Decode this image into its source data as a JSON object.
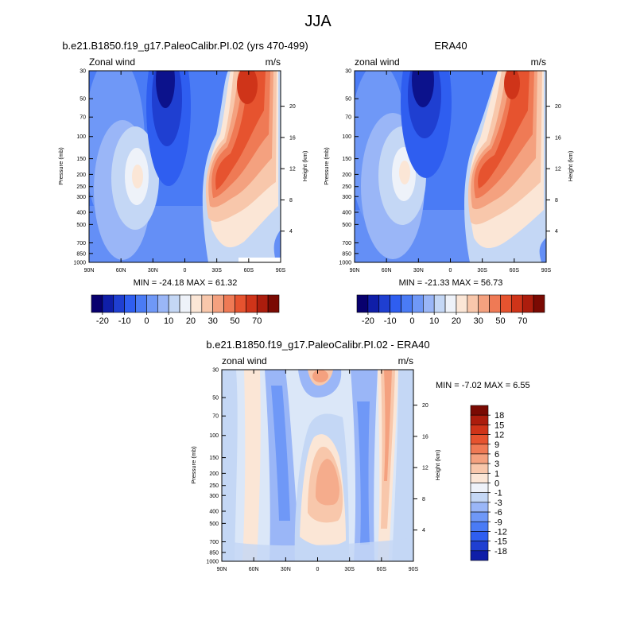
{
  "figure": {
    "title": "JJA"
  },
  "chart_data": [
    {
      "type": "heatmap",
      "title": "b.e21.B1850.f19_g17.PaleoCalibr.PI.02 (yrs 470-499)",
      "left_label": "Zonal wind",
      "units": "m/s",
      "ylabel": "Pressure (mb)",
      "ylabel_right": "Height (km)",
      "x_ticks": [
        "90N",
        "60N",
        "30N",
        "0",
        "30S",
        "60S",
        "90S"
      ],
      "x_tick_values": [
        90,
        60,
        30,
        0,
        -30,
        -60,
        -90
      ],
      "y_ticks": [
        "30",
        "50",
        "70",
        "100",
        "150",
        "200",
        "250",
        "300",
        "400",
        "500",
        "700",
        "850",
        "1000"
      ],
      "y_tick_values": [
        30,
        50,
        70,
        100,
        150,
        200,
        250,
        300,
        400,
        500,
        700,
        850,
        1000
      ],
      "height_ticks": [
        "20",
        "16",
        "12",
        "8",
        "4"
      ],
      "height_tick_values": [
        20,
        16,
        12,
        8,
        4
      ],
      "stats_text": "MIN = -24.18  MAX =  61.32",
      "min": -24.18,
      "max": 61.32
    },
    {
      "type": "heatmap",
      "title": "ERA40",
      "left_label": "zonal wind",
      "units": "m/s",
      "ylabel": "Pressure (mb)",
      "ylabel_right": "Height (km)",
      "x_ticks": [
        "90N",
        "60N",
        "30N",
        "0",
        "30S",
        "60S",
        "90S"
      ],
      "x_tick_values": [
        90,
        60,
        30,
        0,
        -30,
        -60,
        -90
      ],
      "y_ticks": [
        "30",
        "50",
        "70",
        "100",
        "150",
        "200",
        "250",
        "300",
        "400",
        "500",
        "700",
        "850",
        "1000"
      ],
      "y_tick_values": [
        30,
        50,
        70,
        100,
        150,
        200,
        250,
        300,
        400,
        500,
        700,
        850,
        1000
      ],
      "height_ticks": [
        "20",
        "16",
        "12",
        "8",
        "4"
      ],
      "height_tick_values": [
        20,
        16,
        12,
        8,
        4
      ],
      "stats_text": "MIN = -21.33  MAX =  56.73",
      "min": -21.33,
      "max": 56.73
    },
    {
      "type": "heatmap",
      "title": "b.e21.B1850.f19_g17.PaleoCalibr.PI.02 - ERA40",
      "left_label": "zonal wind",
      "units": "m/s",
      "ylabel": "Pressure (mb)",
      "ylabel_right": "Height (km)",
      "x_ticks": [
        "90N",
        "60N",
        "30N",
        "0",
        "30S",
        "60S",
        "90S"
      ],
      "x_tick_values": [
        90,
        60,
        30,
        0,
        -30,
        -60,
        -90
      ],
      "y_ticks": [
        "30",
        "50",
        "70",
        "100",
        "150",
        "200",
        "250",
        "300",
        "400",
        "500",
        "700",
        "850",
        "1000"
      ],
      "y_tick_values": [
        30,
        50,
        70,
        100,
        150,
        200,
        250,
        300,
        400,
        500,
        700,
        850,
        1000
      ],
      "height_ticks": [
        "20",
        "16",
        "12",
        "8",
        "4"
      ],
      "height_tick_values": [
        20,
        16,
        12,
        8,
        4
      ],
      "stats_text": "MIN =  -7.02  MAX =   6.55",
      "min": -7.02,
      "max": 6.55
    }
  ],
  "colorbars": {
    "abs_labels": [
      "-20",
      "-10",
      "0",
      "10",
      "20",
      "30",
      "50",
      "70"
    ],
    "abs_colors": [
      "#08006e",
      "#0f1ea8",
      "#1f3fd1",
      "#2f5ef0",
      "#4a7bf5",
      "#6f98f7",
      "#9ab6f7",
      "#c4d7f5",
      "#eef2f9",
      "#fbe6d6",
      "#f8c7ab",
      "#f4a17f",
      "#ef7a55",
      "#e6532f",
      "#cf3419",
      "#ac1d0d",
      "#7a0a03"
    ],
    "diff_labels": [
      "18",
      "15",
      "12",
      "9",
      "6",
      "3",
      "1",
      "0",
      "-1",
      "-3",
      "-6",
      "-9",
      "-12",
      "-15",
      "-18"
    ],
    "diff_colors": [
      "#7a0a03",
      "#ac1d0d",
      "#cf3419",
      "#e6532f",
      "#ef7a55",
      "#f4a17f",
      "#f8c7ab",
      "#fbe6d6",
      "#eef2f9",
      "#c4d7f5",
      "#9ab6f7",
      "#6f98f7",
      "#4a7bf5",
      "#2f5ef0",
      "#1f3fd1",
      "#0f1ea8"
    ]
  }
}
